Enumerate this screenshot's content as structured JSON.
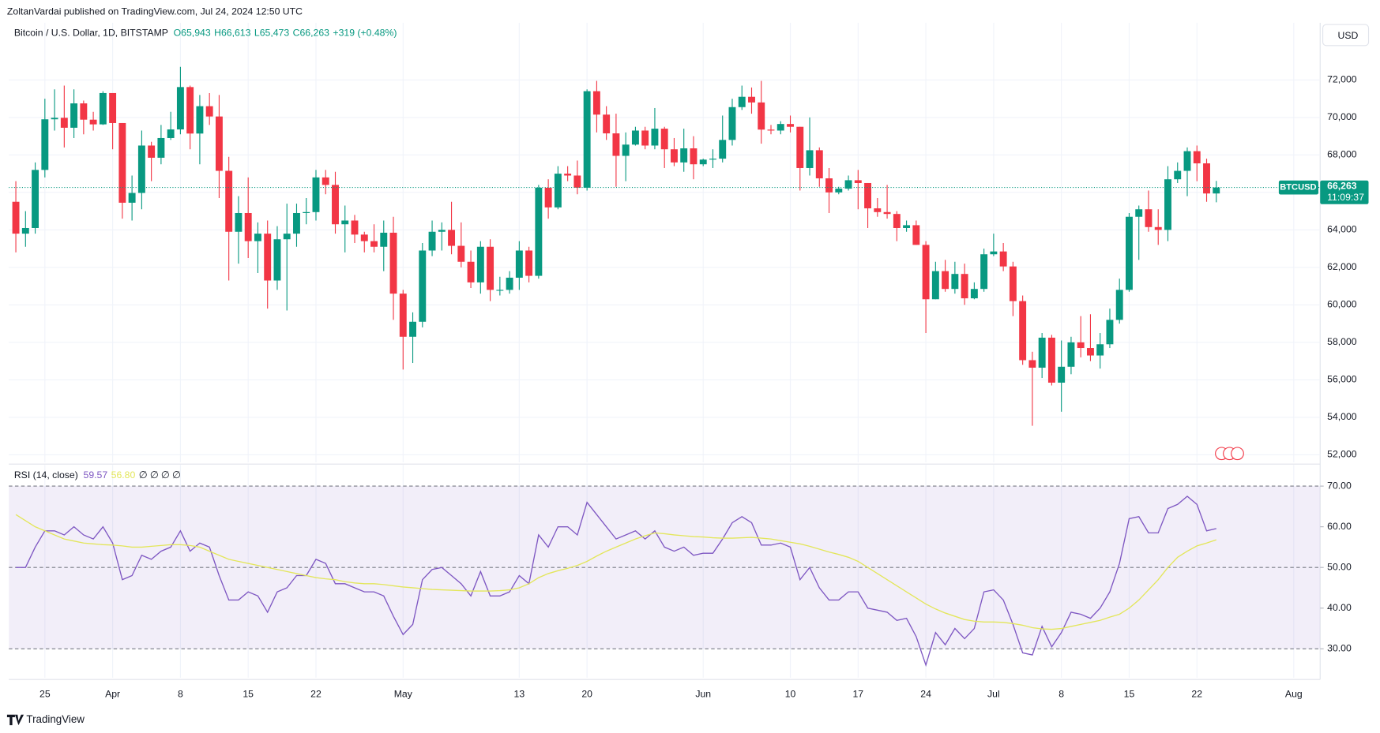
{
  "header": {
    "published": "ZoltanVardai published on TradingView.com, Jul 24, 2024 12:50 UTC",
    "currency_button": "USD",
    "footer": "TradingView"
  },
  "chart_data": [
    {
      "type": "candlestick",
      "title": "Bitcoin / U.S. Dollar, 1D, BITSTAMP",
      "legend_values": [
        "O65,943",
        "H66,613",
        "L65,473",
        "C66,263",
        "+319 (+0.48%)"
      ],
      "symbol": "BTCUSD",
      "last_price_label": "66,263",
      "countdown": "11:09:37",
      "up_color": "#089981",
      "down_color": "#f23645",
      "x": [
        "2024-03-22",
        "2024-03-23",
        "2024-03-24",
        "2024-03-25",
        "2024-03-26",
        "2024-03-27",
        "2024-03-28",
        "2024-03-29",
        "2024-03-30",
        "2024-03-31",
        "2024-04-01",
        "2024-04-02",
        "2024-04-03",
        "2024-04-04",
        "2024-04-05",
        "2024-04-06",
        "2024-04-07",
        "2024-04-08",
        "2024-04-09",
        "2024-04-10",
        "2024-04-11",
        "2024-04-12",
        "2024-04-13",
        "2024-04-14",
        "2024-04-15",
        "2024-04-16",
        "2024-04-17",
        "2024-04-18",
        "2024-04-19",
        "2024-04-20",
        "2024-04-21",
        "2024-04-22",
        "2024-04-23",
        "2024-04-24",
        "2024-04-25",
        "2024-04-26",
        "2024-04-27",
        "2024-04-28",
        "2024-04-29",
        "2024-04-30",
        "2024-05-01",
        "2024-05-02",
        "2024-05-03",
        "2024-05-04",
        "2024-05-05",
        "2024-05-06",
        "2024-05-07",
        "2024-05-08",
        "2024-05-09",
        "2024-05-10",
        "2024-05-11",
        "2024-05-12",
        "2024-05-13",
        "2024-05-14",
        "2024-05-15",
        "2024-05-16",
        "2024-05-17",
        "2024-05-18",
        "2024-05-19",
        "2024-05-20",
        "2024-05-21",
        "2024-05-22",
        "2024-05-23",
        "2024-05-24",
        "2024-05-25",
        "2024-05-26",
        "2024-05-27",
        "2024-05-28",
        "2024-05-29",
        "2024-05-30",
        "2024-05-31",
        "2024-06-01",
        "2024-06-02",
        "2024-06-03",
        "2024-06-04",
        "2024-06-05",
        "2024-06-06",
        "2024-06-07",
        "2024-06-08",
        "2024-06-09",
        "2024-06-10",
        "2024-06-11",
        "2024-06-12",
        "2024-06-13",
        "2024-06-14",
        "2024-06-15",
        "2024-06-16",
        "2024-06-17",
        "2024-06-18",
        "2024-06-19",
        "2024-06-20",
        "2024-06-21",
        "2024-06-22",
        "2024-06-23",
        "2024-06-24",
        "2024-06-25",
        "2024-06-26",
        "2024-06-27",
        "2024-06-28",
        "2024-06-29",
        "2024-06-30",
        "2024-07-01",
        "2024-07-02",
        "2024-07-03",
        "2024-07-04",
        "2024-07-05",
        "2024-07-06",
        "2024-07-07",
        "2024-07-08",
        "2024-07-09",
        "2024-07-10",
        "2024-07-11",
        "2024-07-12",
        "2024-07-13",
        "2024-07-14",
        "2024-07-15",
        "2024-07-16",
        "2024-07-17",
        "2024-07-18",
        "2024-07-19",
        "2024-07-20",
        "2024-07-21",
        "2024-07-22",
        "2024-07-23",
        "2024-07-24"
      ],
      "open": [
        65500,
        63800,
        64100,
        67200,
        69900,
        69980,
        69450,
        70750,
        69880,
        69630,
        71300,
        69700,
        65450,
        65970,
        68500,
        67850,
        68900,
        69360,
        71620,
        69140,
        70600,
        70050,
        67150,
        63900,
        64900,
        63400,
        63800,
        61300,
        63500,
        63800,
        64900,
        64950,
        66800,
        66400,
        64300,
        64500,
        63750,
        63400,
        63100,
        63850,
        60600,
        58300,
        59100,
        62900,
        63900,
        64000,
        63150,
        62300,
        61200,
        63100,
        60800,
        60800,
        61450,
        62900,
        61550,
        66250,
        65200,
        67000,
        66900,
        66250,
        71400,
        70150,
        69150,
        67950,
        68550,
        69300,
        68500,
        69400,
        68300,
        67600,
        68350,
        67500,
        67750,
        67800,
        68800,
        70550,
        71100,
        70800,
        69350,
        69300,
        69650,
        69500,
        67300,
        68250,
        66750,
        66000,
        66200,
        66650,
        66500,
        65150,
        64950,
        64850,
        64100,
        64250,
        63200,
        60300,
        61800,
        60850,
        61650,
        60350,
        60850,
        62700,
        62850,
        62050,
        60200,
        57050,
        56650,
        58250,
        55850,
        56700,
        58000,
        57700,
        57300,
        57900,
        59200,
        60800,
        64700,
        65100,
        64150,
        64000,
        66700,
        67150,
        68200,
        67550,
        65943
      ],
      "high": [
        66600,
        65000,
        67600,
        71000,
        71500,
        71700,
        71500,
        70900,
        70300,
        71400,
        71300,
        69700,
        66900,
        69300,
        68700,
        69600,
        70300,
        72700,
        71700,
        71200,
        71300,
        71200,
        67900,
        65800,
        66800,
        64400,
        64500,
        64200,
        65400,
        65400,
        65700,
        67200,
        67200,
        67100,
        65300,
        64800,
        63900,
        64300,
        64500,
        64700,
        60800,
        59600,
        63300,
        64500,
        64400,
        65500,
        64400,
        62900,
        63400,
        63500,
        61500,
        61800,
        63400,
        63100,
        66400,
        66700,
        67400,
        67400,
        67700,
        71500,
        71950,
        70600,
        70200,
        69200,
        69500,
        69500,
        70500,
        69500,
        68900,
        69400,
        69000,
        67800,
        68300,
        70100,
        71000,
        71700,
        71600,
        71950,
        69600,
        69800,
        70100,
        69500,
        70000,
        68400,
        67300,
        66300,
        66900,
        67200,
        66500,
        65700,
        66400,
        65000,
        64500,
        64500,
        63400,
        62300,
        62400,
        62300,
        62200,
        61200,
        63000,
        63800,
        63300,
        62300,
        60500,
        57500,
        58500,
        58400,
        58100,
        58300,
        59400,
        59500,
        58500,
        59800,
        61400,
        64900,
        65300,
        66100,
        65100,
        67400,
        67600,
        68400,
        68500,
        67800,
        66613
      ],
      "low": [
        62800,
        63100,
        63800,
        66800,
        69300,
        68400,
        68900,
        69100,
        69300,
        69600,
        68300,
        64600,
        64500,
        65100,
        66600,
        67500,
        68800,
        69100,
        68300,
        67500,
        69600,
        65700,
        61300,
        62200,
        62500,
        61700,
        59800,
        60800,
        59700,
        63100,
        64300,
        64500,
        65900,
        63800,
        62800,
        63300,
        62800,
        62800,
        61800,
        59200,
        56550,
        56900,
        58800,
        62600,
        62900,
        62700,
        62000,
        60900,
        60600,
        60200,
        60500,
        60600,
        60800,
        61200,
        61400,
        64600,
        65100,
        66600,
        65900,
        66100,
        69200,
        68800,
        66300,
        66600,
        68500,
        68300,
        68300,
        67300,
        67400,
        67100,
        66700,
        67400,
        67300,
        67600,
        68500,
        70400,
        70200,
        68600,
        69100,
        69100,
        69200,
        66100,
        66900,
        66300,
        64900,
        65900,
        66100,
        65100,
        64100,
        64700,
        64600,
        63400,
        63900,
        63200,
        58500,
        60300,
        60700,
        60600,
        60000,
        60300,
        60700,
        62600,
        61800,
        59400,
        56800,
        53550,
        56100,
        55700,
        54300,
        56300,
        57200,
        57000,
        56600,
        57700,
        59000,
        60700,
        62400,
        63900,
        63200,
        63400,
        66500,
        65800,
        66600,
        65500,
        65473
      ],
      "close": [
        63800,
        64100,
        67200,
        69900,
        69980,
        69450,
        70750,
        69880,
        69630,
        71300,
        69700,
        65450,
        65970,
        68500,
        67850,
        68900,
        69360,
        71620,
        69140,
        70600,
        70050,
        67150,
        63900,
        64900,
        63400,
        63800,
        61300,
        63500,
        63800,
        64900,
        64950,
        66800,
        66400,
        64300,
        64500,
        63750,
        63400,
        63100,
        63850,
        60600,
        58300,
        59100,
        62900,
        63900,
        64000,
        63150,
        62300,
        61200,
        63100,
        60800,
        60800,
        61450,
        62900,
        61550,
        66250,
        65200,
        67000,
        66900,
        66250,
        71400,
        70150,
        69150,
        67950,
        68550,
        69300,
        68500,
        69400,
        68300,
        67600,
        68350,
        67500,
        67750,
        67800,
        68800,
        70550,
        71100,
        70800,
        69350,
        69300,
        69650,
        69500,
        67300,
        68250,
        66750,
        66000,
        66200,
        66650,
        66500,
        65150,
        64950,
        64850,
        64100,
        64250,
        63200,
        60300,
        61800,
        60850,
        61650,
        60350,
        60850,
        62700,
        62850,
        62050,
        60200,
        57050,
        56650,
        58250,
        55850,
        56700,
        58000,
        57700,
        57300,
        57900,
        59200,
        60800,
        64700,
        65100,
        64150,
        64000,
        66700,
        67150,
        68200,
        67550,
        65943,
        66263
      ],
      "ylim": [
        51600,
        75050
      ],
      "yticks": [
        {
          "value": 52000,
          "label": "52,000"
        },
        {
          "value": 54000,
          "label": "54,000"
        },
        {
          "value": 56000,
          "label": "56,000"
        },
        {
          "value": 58000,
          "label": "58,000"
        },
        {
          "value": 60000,
          "label": "60,000"
        },
        {
          "value": 62000,
          "label": "62,000"
        },
        {
          "value": 64000,
          "label": "64,000"
        },
        {
          "value": 66000,
          "label": "66,000"
        },
        {
          "value": 68000,
          "label": "68,000"
        },
        {
          "value": 70000,
          "label": "70,000"
        },
        {
          "value": 72000,
          "label": "72,000"
        }
      ],
      "xticks": [
        {
          "value": "2024-03-25",
          "label": "25"
        },
        {
          "value": "2024-04-01",
          "label": "Apr"
        },
        {
          "value": "2024-04-08",
          "label": "8"
        },
        {
          "value": "2024-04-15",
          "label": "15"
        },
        {
          "value": "2024-04-22",
          "label": "22"
        },
        {
          "value": "2024-05-01",
          "label": "May"
        },
        {
          "value": "2024-05-13",
          "label": "13"
        },
        {
          "value": "2024-05-20",
          "label": "20"
        },
        {
          "value": "2024-06-01",
          "label": "Jun"
        },
        {
          "value": "2024-06-10",
          "label": "10"
        },
        {
          "value": "2024-06-17",
          "label": "17"
        },
        {
          "value": "2024-06-24",
          "label": "24"
        },
        {
          "value": "2024-07-01",
          "label": "Jul"
        },
        {
          "value": "2024-07-08",
          "label": "8"
        },
        {
          "value": "2024-07-15",
          "label": "15"
        },
        {
          "value": "2024-07-22",
          "label": "22"
        },
        {
          "value": "2024-08-01",
          "label": "Aug"
        }
      ],
      "grid": true
    },
    {
      "type": "line",
      "title": "RSI (14, close)",
      "legend_values": [
        "59.57",
        "56.80",
        "∅ ∅ ∅ ∅"
      ],
      "series": [
        {
          "name": "RSI",
          "color": "#7e57c2",
          "values": [
            50,
            50,
            55,
            59,
            59,
            58,
            60,
            58,
            57,
            60,
            56,
            47,
            48,
            53,
            52,
            54,
            55,
            59,
            54,
            56,
            55,
            48,
            42,
            42,
            44,
            43,
            39,
            44,
            45,
            48,
            48,
            52,
            51,
            46,
            46,
            45,
            44,
            44,
            43,
            38,
            33.5,
            36,
            47,
            49.5,
            50,
            48,
            46,
            43,
            49,
            43,
            43,
            44,
            48,
            46,
            58,
            55,
            60,
            60,
            58,
            66,
            63,
            60,
            57,
            58,
            59,
            57,
            59,
            55,
            54,
            55,
            53,
            53.5,
            53.5,
            57,
            61,
            62.5,
            61,
            55.5,
            55.5,
            56,
            55,
            47,
            50,
            45,
            42,
            42,
            44,
            44,
            40,
            39.5,
            39,
            37,
            37.5,
            33,
            26,
            34,
            31,
            35,
            32.5,
            35,
            44,
            44.5,
            42,
            36,
            29,
            28.5,
            35.5,
            30.5,
            34,
            39,
            38.5,
            37.5,
            40,
            44,
            51,
            62,
            62.5,
            58.5,
            58.5,
            64.5,
            65.5,
            67.5,
            65.5,
            59,
            59.57
          ]
        },
        {
          "name": "RSI-based MA",
          "color": "#e3e65a",
          "values": [
            63,
            61.5,
            60,
            59,
            58,
            57,
            56.5,
            56,
            55.8,
            55.6,
            55.5,
            55.3,
            55,
            55,
            55.2,
            55.4,
            55.6,
            55.6,
            55.4,
            55,
            54,
            53,
            52,
            51.5,
            51,
            50.5,
            50,
            49.5,
            49,
            48.5,
            48,
            47.5,
            47.2,
            47,
            46.5,
            46.2,
            46,
            46,
            45.8,
            45.5,
            45.2,
            45,
            44.8,
            44.6,
            44.5,
            44.4,
            44.3,
            44.2,
            44.2,
            44.2,
            44.3,
            44.5,
            45,
            46,
            47.5,
            48.5,
            49.2,
            49.8,
            50.5,
            51.5,
            52.8,
            54,
            55,
            56,
            57,
            57.8,
            58.5,
            58.3,
            58,
            57.8,
            57.6,
            57.5,
            57.3,
            57.2,
            57.2,
            57.3,
            57.4,
            57.2,
            57,
            56.6,
            56.2,
            55.8,
            55.2,
            54.5,
            53.8,
            53.2,
            52.5,
            51.5,
            50,
            48.5,
            47,
            45.5,
            44,
            42.5,
            41,
            39.8,
            38.8,
            38,
            37.2,
            36.8,
            36.6,
            36.6,
            36.5,
            36.2,
            35.8,
            35.2,
            34.9,
            34.8,
            35,
            35.5,
            36,
            36.5,
            37,
            37.8,
            38.5,
            40,
            42,
            44.5,
            47,
            50,
            52.5,
            54,
            55.3,
            56,
            56.8
          ]
        }
      ],
      "band": [
        30,
        70
      ],
      "levels": [
        30,
        50,
        70
      ],
      "band_color": "rgba(126,87,194,0.10)",
      "ylim": [
        22.9,
        75.2
      ],
      "yticks": [
        {
          "value": 30,
          "label": "30.00"
        },
        {
          "value": 40,
          "label": "40.00"
        },
        {
          "value": 50,
          "label": "50.00"
        },
        {
          "value": 60,
          "label": "60.00"
        },
        {
          "value": 70,
          "label": "70.00"
        }
      ]
    }
  ]
}
